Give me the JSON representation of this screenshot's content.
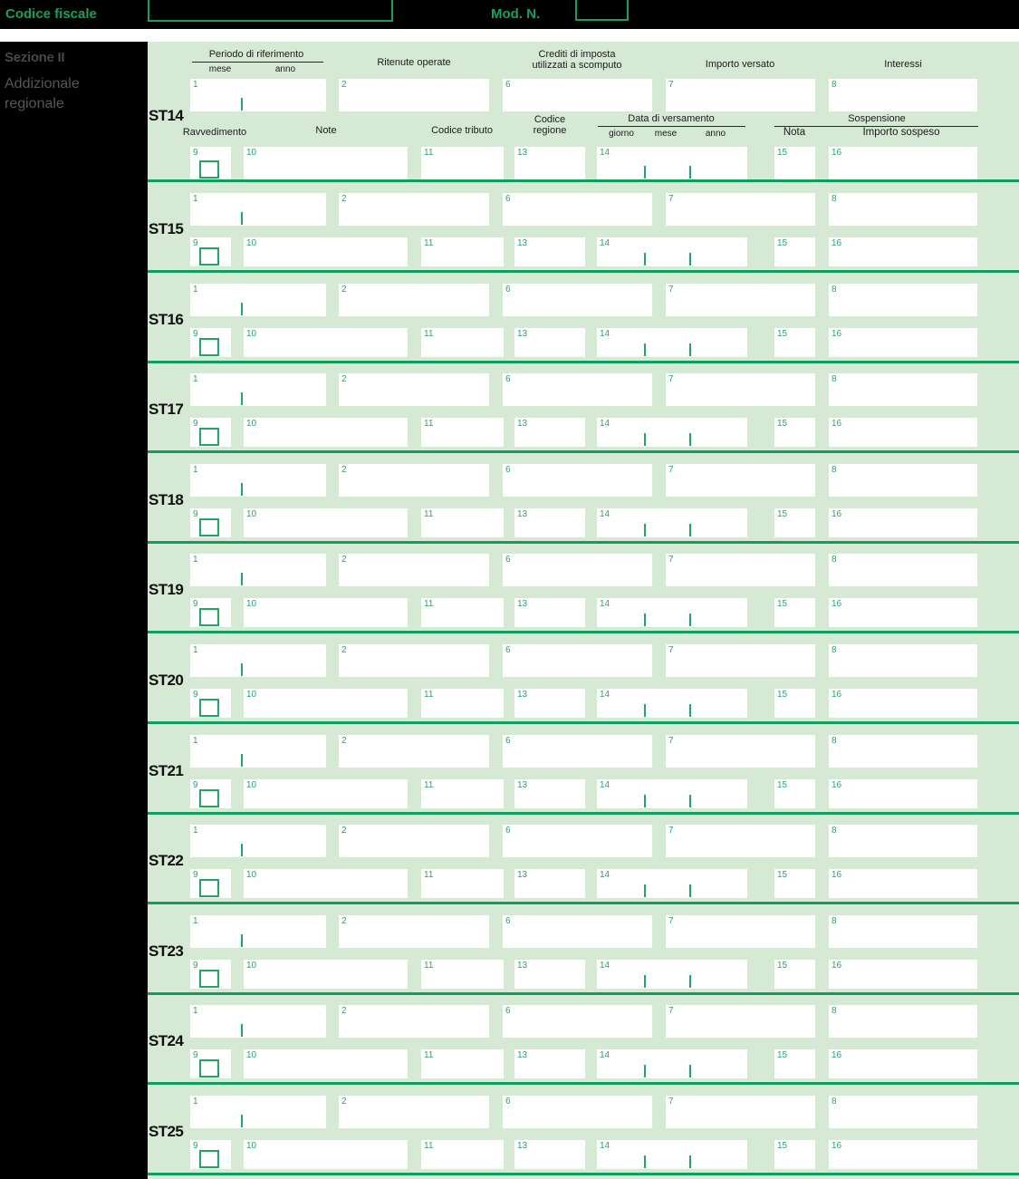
{
  "top_bar": {
    "codice_fiscale_label": "Codice fiscale",
    "mod_n_label": "Mod. N."
  },
  "sidebar": {
    "section_title": "Sezione II",
    "section_subtitle_line1": "Addizionale",
    "section_subtitle_line2": "regionale"
  },
  "headers": {
    "periodo": "Periodo di riferimento",
    "mese": "mese",
    "anno": "anno",
    "ritenute": "Ritenute operate",
    "crediti_line1": "Crediti di imposta",
    "crediti_line2": "utilizzati a scomputo",
    "importo_versato": "Importo versato",
    "interessi": "Interessi",
    "ravvedimento": "Ravvedimento",
    "note": "Note",
    "codice_tributo": "Codice tributo",
    "codice_regione_line1": "Codice",
    "codice_regione_line2": "regione",
    "data_versamento": "Data di versamento",
    "giorno": "giorno",
    "mese2": "mese",
    "anno2": "anno",
    "sospensione": "Sospensione",
    "nota": "Nota",
    "importo_sospeso": "Importo sospeso"
  },
  "rows": [
    "ST14",
    "ST15",
    "ST16",
    "ST17",
    "ST18",
    "ST19",
    "ST20",
    "ST21",
    "ST22",
    "ST23",
    "ST24",
    "ST25"
  ],
  "field_numbers": {
    "f1": "1",
    "f2": "2",
    "f6": "6",
    "f7": "7",
    "f8": "8",
    "f9": "9",
    "f10": "10",
    "f11": "11",
    "f13": "13",
    "f14": "14",
    "f15": "15",
    "f16": "16"
  },
  "colors": {
    "accent_green": "#0f9e5e",
    "background_green": "#d6e9d4",
    "label_green": "#17a05d",
    "number_green": "#2f9e71"
  }
}
